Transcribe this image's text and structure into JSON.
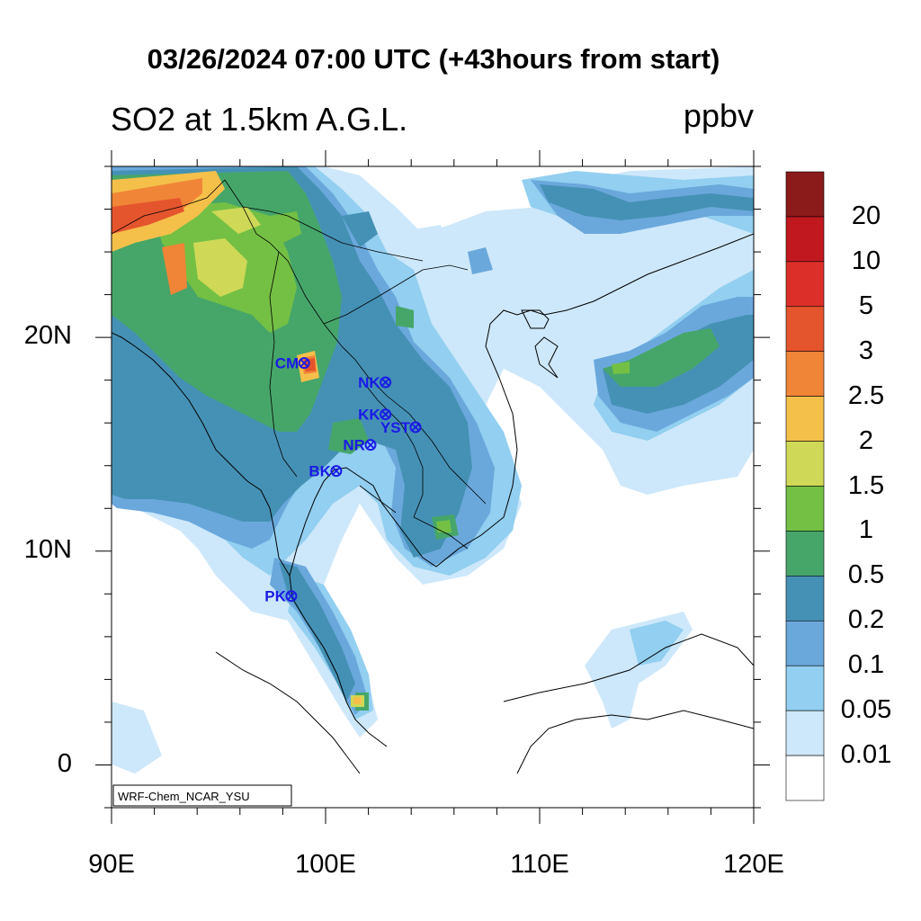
{
  "title": "03/26/2024 07:00 UTC (+43hours from start)",
  "subtitle": "SO2 at 1.5km A.G.L.",
  "units": "ppbv",
  "watermark": "WRF-Chem_NCAR_YSU",
  "lat_labels": [
    "20N",
    "10N",
    "0"
  ],
  "lon_labels": [
    "90E",
    "100E",
    "110E",
    "120E"
  ],
  "map_extent": {
    "lon": [
      90,
      120
    ],
    "lat": [
      -2,
      28
    ]
  },
  "colorbar": {
    "labels": [
      "20",
      "10",
      "5",
      "3",
      "2.5",
      "2",
      "1.5",
      "1",
      "0.5",
      "0.2",
      "0.1",
      "0.05",
      "0.01"
    ],
    "colors": [
      "#8b1a1a",
      "#c0181e",
      "#dc2f2a",
      "#e5552d",
      "#f08537",
      "#f5c04a",
      "#cfd957",
      "#74c044",
      "#46a66a",
      "#4591b5",
      "#6aa8dc",
      "#92cff0",
      "#cde8fa",
      "#ffffff"
    ]
  },
  "stations": [
    {
      "name": "CM",
      "lon": 99.0,
      "lat": 18.8
    },
    {
      "name": "NK",
      "lon": 102.8,
      "lat": 17.9
    },
    {
      "name": "KK",
      "lon": 102.8,
      "lat": 16.4
    },
    {
      "name": "YST",
      "lon": 104.2,
      "lat": 15.8
    },
    {
      "name": "NR",
      "lon": 102.1,
      "lat": 14.97
    },
    {
      "name": "BK",
      "lon": 100.5,
      "lat": 13.75
    },
    {
      "name": "PK",
      "lon": 98.4,
      "lat": 7.9
    }
  ]
}
